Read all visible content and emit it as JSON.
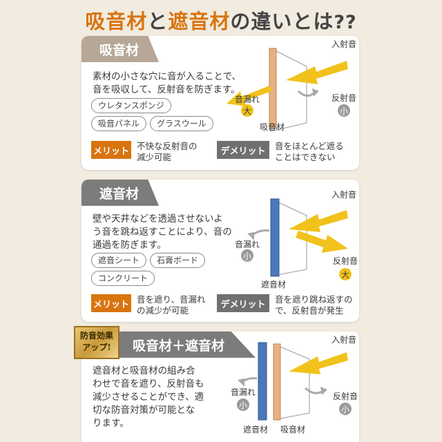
{
  "title": {
    "part1": "吸音材",
    "mid": "と",
    "part2": "遮音材",
    "part3": "の違いとは",
    "q": "??"
  },
  "panels": [
    {
      "tab": "吸音材",
      "desc": [
        "素材の小さな穴に音が入ることで、",
        "音を吸収して、反射音を防ぎます。"
      ],
      "chips": [
        "ウレタンスポンジ",
        "吸音パネル",
        "グラスウール"
      ],
      "merit_label": "メリット",
      "merit_text": [
        "不快な反射音の",
        "減少可能"
      ],
      "demerit_label": "デメリット",
      "demerit_text": [
        "音をほとんど遮る",
        "ことはできない"
      ],
      "diagram": {
        "incident": "入射音",
        "leak": "音漏れ",
        "leak_size": "大",
        "reflect": "反射音",
        "reflect_size": "小",
        "material": "吸音材"
      }
    },
    {
      "tab": "遮音材",
      "desc": [
        "壁や天井などを透過させないよ",
        "う音を跳ね返すことにより、音の",
        "通過を防ぎます。"
      ],
      "chips": [
        "遮音シート",
        "石膏ボード",
        "コンクリート"
      ],
      "merit_label": "メリット",
      "merit_text": [
        "音を遮り、音漏れ",
        "の減少が可能"
      ],
      "demerit_label": "デメリット",
      "demerit_text": [
        "音を遮り跳ね返すの",
        "で、反射音が発生"
      ],
      "diagram": {
        "incident": "入射音",
        "leak": "音漏れ",
        "leak_size": "小",
        "reflect": "反射音",
        "reflect_size": "大",
        "material": "遮音材"
      }
    },
    {
      "badge": [
        "防音効果",
        "アップ!"
      ],
      "tab": "吸音材＋遮音材",
      "desc": [
        "遮音材と吸音材の組み合",
        "わせで音を遮り、反射音も",
        "減少させることができ、適",
        "切な防音対策が可能とな",
        "ります。"
      ],
      "diagram": {
        "incident": "入射音",
        "leak": "音漏れ",
        "leak_size": "小",
        "reflect": "反射音",
        "reflect_size": "小",
        "material1": "遮音材",
        "material2": "吸音材"
      }
    }
  ],
  "colors": {
    "accent": "#d9740f",
    "arrow": "#f1c21b",
    "absorber": "#e7b184",
    "insulator": "#4b78b8",
    "gray_arrow": "#a9a9a9"
  }
}
